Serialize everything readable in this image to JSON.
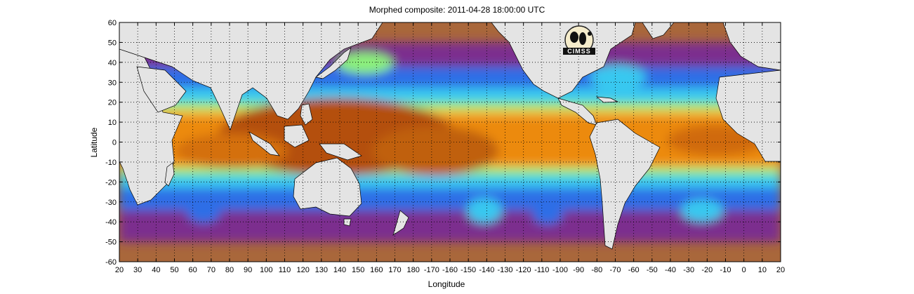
{
  "title": "Morphed composite: 2011-04-28 18:00:00 UTC",
  "xlabel": "Longitude",
  "ylabel": "Latitude",
  "logo_text": "CIMSS",
  "x_ticks": [
    "20",
    "30",
    "40",
    "50",
    "60",
    "70",
    "80",
    "90",
    "100",
    "110",
    "120",
    "130",
    "140",
    "150",
    "160",
    "170",
    "180",
    "-170",
    "-160",
    "-150",
    "-140",
    "-130",
    "-120",
    "-110",
    "-100",
    "-90",
    "-80",
    "-70",
    "-60",
    "-50",
    "-40",
    "-30",
    "-20",
    "-10",
    "0",
    "10",
    "20"
  ],
  "y_ticks": [
    "60",
    "50",
    "40",
    "30",
    "20",
    "10",
    "0",
    "-10",
    "-20",
    "-30",
    "-40",
    "-50",
    "-60"
  ],
  "colors": {
    "land": "#e4e4e4",
    "tpw_low": "#a9673b",
    "tpw_purple": "#7b2e8e",
    "tpw_blue": "#2e6ee6",
    "tpw_cyan": "#38c8f0",
    "tpw_green": "#8cf07a",
    "tpw_yellow": "#f0e040",
    "tpw_orange": "#ec8a10",
    "tpw_high": "#b4500a"
  }
}
